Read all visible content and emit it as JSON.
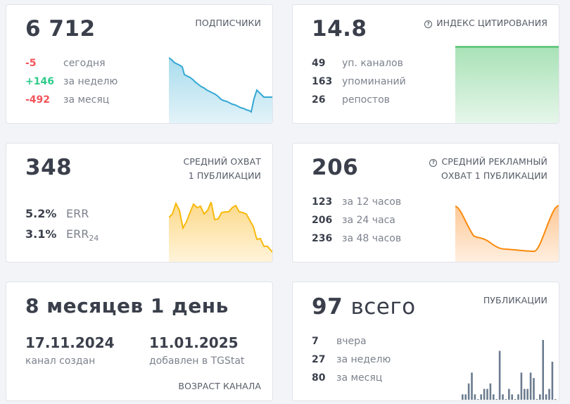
{
  "subscribers": {
    "value": "6 712",
    "title": "ПОДПИСЧИКИ",
    "stats": [
      {
        "value": "-5",
        "label": "сегодня",
        "color": "#f2545b"
      },
      {
        "value": "+146",
        "label": "за неделю",
        "color": "#2fcb8a"
      },
      {
        "value": "-492",
        "label": "за месяц",
        "color": "#f2545b"
      }
    ],
    "chart_color": "#35a8d3"
  },
  "citation": {
    "value": "14.8",
    "title": "ИНДЕКС ЦИТИРОВАНИЯ",
    "help_icon": "?",
    "stats": [
      {
        "value": "49",
        "label": "уп. каналов"
      },
      {
        "value": "163",
        "label": "упоминаний"
      },
      {
        "value": "26",
        "label": "репостов"
      }
    ],
    "chart_color": "#3cb85c"
  },
  "reach": {
    "value": "348",
    "title_line1": "СРЕДНИЙ ОХВАТ",
    "title_line2": "1 ПУБЛИКАЦИИ",
    "stats": [
      {
        "value": "5.2%",
        "label": "ERR"
      },
      {
        "value": "3.1%",
        "label": "ERR",
        "sub": "24"
      }
    ],
    "chart_color": "#f8b90d"
  },
  "ad_reach": {
    "value": "206",
    "title_line1": "СРЕДНИЙ РЕКЛАМНЫЙ",
    "title_line2": "ОХВАТ 1 ПУБЛИКАЦИИ",
    "help_icon": "?",
    "stats": [
      {
        "value": "123",
        "label": "за 12 часов"
      },
      {
        "value": "206",
        "label": "за 24 часа"
      },
      {
        "value": "236",
        "label": "за 48 часов"
      }
    ],
    "chart_color": "#fb8a0c"
  },
  "age": {
    "value": "8 месяцев 1 день",
    "created_date": "17.11.2024",
    "created_label": "канал создан",
    "added_date": "11.01.2025",
    "added_label": "добавлен в TGStat",
    "title": "ВОЗРАСТ КАНАЛА"
  },
  "posts": {
    "value": "97",
    "value_suffix": "всего",
    "title": "ПУБЛИКАЦИИ",
    "stats": [
      {
        "value": "7",
        "label": "вчера"
      },
      {
        "value": "27",
        "label": "за неделю"
      },
      {
        "value": "80",
        "label": "за месяц"
      }
    ],
    "chart_color": "#6b7c8f"
  },
  "chart_data": [
    {
      "type": "area",
      "title": "Подписчики",
      "values": [
        100,
        97,
        93,
        91,
        88,
        76,
        74,
        70,
        66,
        63,
        60,
        57,
        55,
        53,
        50,
        46,
        44,
        42,
        40,
        38,
        35,
        34,
        32,
        45,
        58,
        54,
        50,
        50
      ]
    },
    {
      "type": "area",
      "title": "Индекс цитирования",
      "values": [
        100,
        100,
        100,
        100,
        100,
        100
      ]
    },
    {
      "type": "area",
      "title": "Средний охват",
      "values": [
        72,
        78,
        92,
        80,
        48,
        58,
        78,
        90,
        85,
        87,
        76,
        80,
        93,
        66,
        66,
        75,
        76,
        76,
        82,
        85,
        76,
        74,
        72,
        62,
        52,
        30,
        30,
        18,
        18,
        10
      ]
    },
    {
      "type": "area",
      "title": "Средний рекламный охват",
      "values": [
        88,
        65,
        40,
        35,
        25,
        20,
        19,
        18,
        18,
        60,
        90
      ]
    },
    {
      "type": "bar",
      "title": "Публикации",
      "values": [
        1,
        1,
        3,
        5,
        1,
        0,
        1,
        2,
        2,
        3,
        1,
        0,
        9,
        1,
        0,
        2,
        1,
        0,
        1,
        5,
        2,
        2,
        5,
        4,
        0,
        1,
        11,
        1,
        2,
        7,
        0
      ]
    }
  ]
}
